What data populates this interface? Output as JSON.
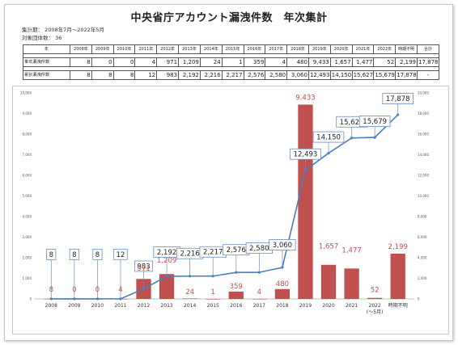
{
  "header": {
    "title": "中央省庁アカウント漏洩件数　年次集計",
    "period_label": "集計期：",
    "period_value": "2008年7月～2022年5月",
    "orgs_label": "対象団体数：",
    "orgs_value": "36"
  },
  "table": {
    "corner": "年",
    "columns": [
      "2008年",
      "2009年",
      "2010年",
      "2011年",
      "2012年",
      "2013年",
      "2014年",
      "2015年",
      "2016年",
      "2017年",
      "2018年",
      "2019年",
      "2020年",
      "2021年",
      "2022年",
      "時期不明",
      "合計"
    ],
    "rows": [
      {
        "label": "単年漏洩件数",
        "cells": [
          "8",
          "0",
          "0",
          "4",
          "971",
          "1,209",
          "24",
          "1",
          "359",
          "4",
          "480",
          "9,433",
          "1,657",
          "1,477",
          "52",
          "2,199",
          "17,878"
        ]
      },
      {
        "label": "累計漏洩件数",
        "cells": [
          "8",
          "8",
          "8",
          "12",
          "983",
          "2,192",
          "2,216",
          "2,217",
          "2,576",
          "2,580",
          "3,060",
          "12,493",
          "14,150",
          "15,627",
          "15,679",
          "17,878",
          "-"
        ]
      }
    ]
  },
  "chart_data": {
    "type": "bar",
    "categories": [
      "2008",
      "2009",
      "2010",
      "2011",
      "2012",
      "2013",
      "2014",
      "2015",
      "2016",
      "2017",
      "2018",
      "2019",
      "2020",
      "2021",
      "2022\n(～5月)",
      "時期不明"
    ],
    "series": [
      {
        "type": "bar",
        "values": [
          8,
          0,
          0,
          4,
          971,
          1209,
          24,
          1,
          359,
          4,
          480,
          9433,
          1657,
          1477,
          52,
          2199
        ],
        "labels": [
          "8",
          "0",
          "0",
          "4",
          "971",
          "1,209",
          "24",
          "1",
          "359",
          "4",
          "480",
          "9,433",
          "1,657",
          "1,477",
          "52",
          "2,199"
        ],
        "color": "#c0504d",
        "axis": "left"
      },
      {
        "type": "line",
        "values": [
          8,
          8,
          8,
          12,
          983,
          2192,
          2216,
          2217,
          2576,
          2580,
          3060,
          12493,
          14150,
          15627,
          15679,
          17878
        ],
        "labels": [
          "8",
          "8",
          "8",
          "12",
          "983",
          "2,192",
          "2,216",
          "2,217",
          "2,576",
          "2,580",
          "3,060",
          "12,493",
          "14,150",
          "15,627",
          "15,679",
          "17,878"
        ],
        "color": "#4a7ebb",
        "axis": "right"
      }
    ],
    "ylim_left": [
      0,
      10000
    ],
    "yticks_left": [
      "0",
      "1,000",
      "2,000",
      "3,000",
      "4,000",
      "5,000",
      "6,000",
      "7,000",
      "8,000",
      "9,000",
      "10,000"
    ],
    "ylim_right": [
      0,
      20000
    ],
    "yticks_right": [
      "0",
      "2,000",
      "4,000",
      "6,000",
      "8,000",
      "10,000",
      "12,000",
      "14,000",
      "16,000",
      "18,000",
      "20,000"
    ],
    "grid": false
  }
}
